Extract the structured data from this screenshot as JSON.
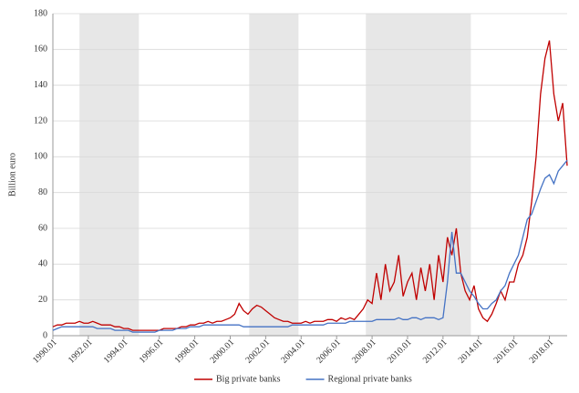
{
  "chart_data": {
    "type": "line",
    "y_label": "Billion euro",
    "xlim": [
      1990,
      2019
    ],
    "ylim": [
      0,
      180
    ],
    "yticks": [
      0,
      20,
      40,
      60,
      80,
      100,
      120,
      140,
      160,
      180
    ],
    "xticks": [
      {
        "value": 1990,
        "label": "1990.01"
      },
      {
        "value": 1992,
        "label": "1992.01"
      },
      {
        "value": 1994,
        "label": "1994.01"
      },
      {
        "value": 1996,
        "label": "1996.01"
      },
      {
        "value": 1998,
        "label": "1998.01"
      },
      {
        "value": 2000,
        "label": "2000.01"
      },
      {
        "value": 2002,
        "label": "2002.01"
      },
      {
        "value": 2004,
        "label": "2004.01"
      },
      {
        "value": 2006,
        "label": "2006.01"
      },
      {
        "value": 2008,
        "label": "2008.01"
      },
      {
        "value": 2010,
        "label": "2010.01"
      },
      {
        "value": 2012,
        "label": "2012.01"
      },
      {
        "value": 2014,
        "label": "2014.01"
      },
      {
        "value": 2016,
        "label": "2016.01"
      },
      {
        "value": 2018,
        "label": "2018.01"
      }
    ],
    "grid": true,
    "band_color": "#e7e7e7",
    "bands": [
      [
        1991.5,
        1994.85
      ],
      [
        2001.07,
        2003.85
      ],
      [
        2007.65,
        2013.57
      ]
    ],
    "legend": "bottom",
    "x": [
      1990,
      1990.25,
      1990.5,
      1990.75,
      1991,
      1991.25,
      1991.5,
      1991.75,
      1992,
      1992.25,
      1992.5,
      1992.75,
      1993,
      1993.25,
      1993.5,
      1993.75,
      1994,
      1994.25,
      1994.5,
      1994.75,
      1995,
      1995.25,
      1995.5,
      1995.75,
      1996,
      1996.25,
      1996.5,
      1996.75,
      1997,
      1997.25,
      1997.5,
      1997.75,
      1998,
      1998.25,
      1998.5,
      1998.75,
      1999,
      1999.25,
      1999.5,
      1999.75,
      2000,
      2000.25,
      2000.5,
      2000.75,
      2001,
      2001.25,
      2001.5,
      2001.75,
      2002,
      2002.25,
      2002.5,
      2002.75,
      2003,
      2003.25,
      2003.5,
      2003.75,
      2004,
      2004.25,
      2004.5,
      2004.75,
      2005,
      2005.25,
      2005.5,
      2005.75,
      2006,
      2006.25,
      2006.5,
      2006.75,
      2007,
      2007.25,
      2007.5,
      2007.75,
      2008,
      2008.25,
      2008.5,
      2008.75,
      2009,
      2009.25,
      2009.5,
      2009.75,
      2010,
      2010.25,
      2010.5,
      2010.75,
      2011,
      2011.25,
      2011.5,
      2011.75,
      2012,
      2012.25,
      2012.5,
      2012.75,
      2013,
      2013.25,
      2013.5,
      2013.75,
      2014,
      2014.25,
      2014.5,
      2014.75,
      2015,
      2015.25,
      2015.5,
      2015.75,
      2016,
      2016.25,
      2016.5,
      2016.75,
      2017,
      2017.25,
      2017.5,
      2017.75,
      2018,
      2018.25,
      2018.5,
      2018.75,
      2019
    ],
    "series": [
      {
        "name": "Big private banks",
        "color": "#c00000",
        "values": [
          5,
          6,
          6,
          7,
          7,
          7,
          8,
          7,
          7,
          8,
          7,
          6,
          6,
          6,
          5,
          5,
          4,
          4,
          3,
          3,
          3,
          3,
          3,
          3,
          3,
          4,
          4,
          4,
          4,
          5,
          5,
          6,
          6,
          7,
          7,
          8,
          7,
          8,
          8,
          9,
          10,
          12,
          18,
          14,
          12,
          15,
          17,
          16,
          14,
          12,
          10,
          9,
          8,
          8,
          7,
          7,
          7,
          8,
          7,
          8,
          8,
          8,
          9,
          9,
          8,
          10,
          9,
          10,
          9,
          12,
          15,
          20,
          18,
          35,
          20,
          40,
          25,
          30,
          45,
          22,
          30,
          35,
          20,
          38,
          25,
          40,
          20,
          45,
          30,
          55,
          45,
          60,
          35,
          25,
          20,
          28,
          15,
          10,
          8,
          12,
          18,
          25,
          20,
          30,
          30,
          40,
          45,
          55,
          75,
          100,
          135,
          155,
          165,
          135,
          120,
          130,
          95
        ]
      },
      {
        "name": "Regional private banks",
        "color": "#4472c4",
        "values": [
          3,
          4,
          5,
          5,
          5,
          5,
          5,
          5,
          5,
          5,
          4,
          4,
          4,
          4,
          3,
          3,
          3,
          3,
          2,
          2,
          2,
          2,
          2,
          2,
          3,
          3,
          3,
          3,
          4,
          4,
          4,
          5,
          5,
          5,
          6,
          6,
          6,
          6,
          6,
          6,
          6,
          6,
          6,
          5,
          5,
          5,
          5,
          5,
          5,
          5,
          5,
          5,
          5,
          5,
          6,
          6,
          6,
          6,
          6,
          6,
          6,
          6,
          7,
          7,
          7,
          7,
          7,
          8,
          8,
          8,
          8,
          8,
          8,
          9,
          9,
          9,
          9,
          9,
          10,
          9,
          9,
          10,
          10,
          9,
          10,
          10,
          10,
          9,
          10,
          30,
          58,
          35,
          35,
          30,
          25,
          22,
          18,
          15,
          15,
          18,
          20,
          25,
          28,
          35,
          40,
          45,
          55,
          65,
          68,
          75,
          82,
          88,
          90,
          85,
          92,
          95,
          98
        ]
      }
    ]
  }
}
